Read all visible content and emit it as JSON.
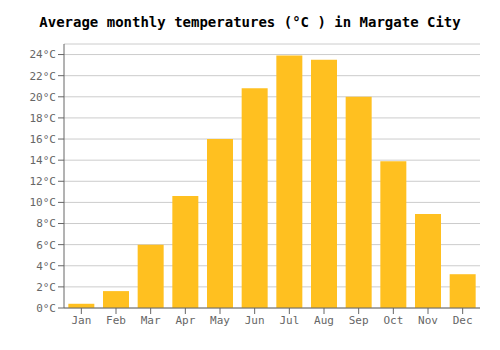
{
  "chart_data": {
    "type": "bar",
    "title": "Average monthly temperatures (°C ) in Margate City",
    "categories": [
      "Jan",
      "Feb",
      "Mar",
      "Apr",
      "May",
      "Jun",
      "Jul",
      "Aug",
      "Sep",
      "Oct",
      "Nov",
      "Dec"
    ],
    "values": [
      0.4,
      1.6,
      6.0,
      10.6,
      16.0,
      20.8,
      23.9,
      23.5,
      20.0,
      13.9,
      8.9,
      3.2
    ],
    "color": "#FFC020",
    "ylim": [
      0,
      25
    ],
    "yticks": [
      {
        "value": 0,
        "label": "0°C"
      },
      {
        "value": 2,
        "label": "2°C"
      },
      {
        "value": 4,
        "label": "4°C"
      },
      {
        "value": 6,
        "label": "6°C"
      },
      {
        "value": 8,
        "label": "8°C"
      },
      {
        "value": 10,
        "label": "10°C"
      },
      {
        "value": 12,
        "label": "12°C"
      },
      {
        "value": 14,
        "label": "14°C"
      },
      {
        "value": 16,
        "label": "16°C"
      },
      {
        "value": 18,
        "label": "18°C"
      },
      {
        "value": 20,
        "label": "20°C"
      },
      {
        "value": 22,
        "label": "22°C"
      },
      {
        "value": 24,
        "label": "24°C"
      }
    ],
    "grid": true
  }
}
